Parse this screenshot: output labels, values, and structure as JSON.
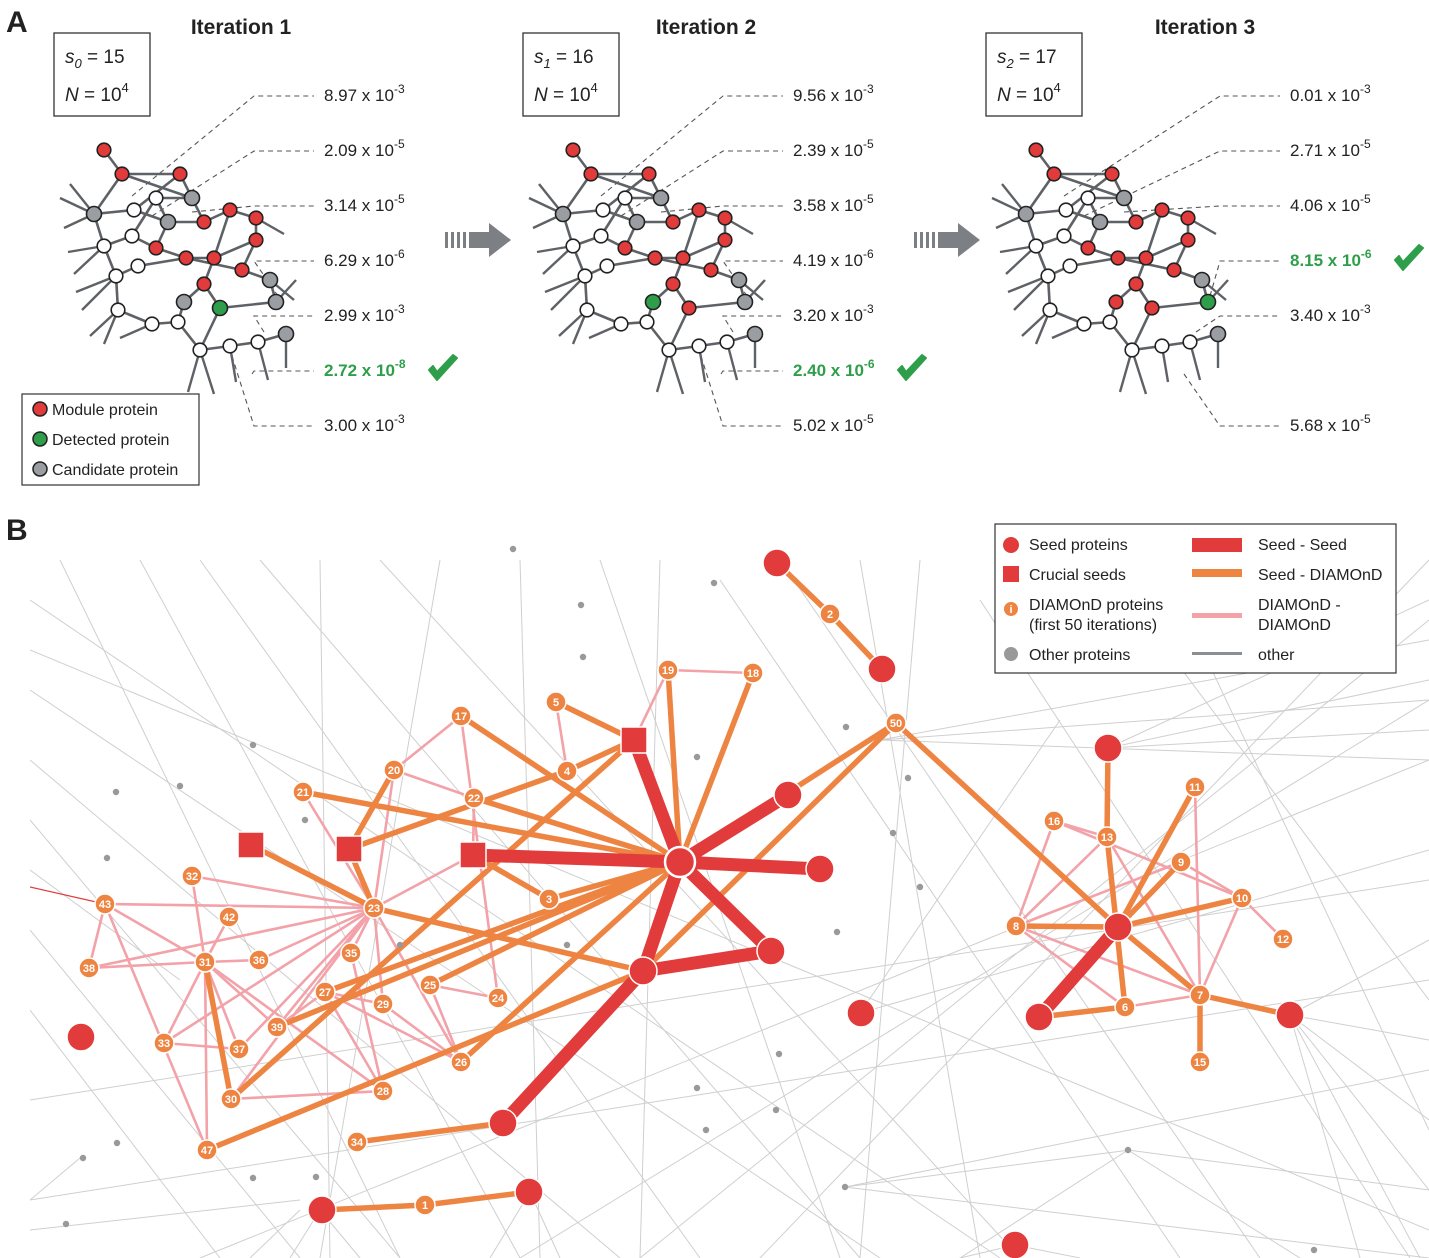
{
  "panel_a": {
    "letter": "A",
    "legend": {
      "module": "Module protein",
      "detected": "Detected protein",
      "candidate": "Candidate protein"
    },
    "arrow_icon": "double-right-arrow",
    "iterations": [
      {
        "title": "Iteration 1",
        "s_label": "s",
        "s_sub": "0",
        "s_value": " = 15",
        "n_label": "N",
        "n_value": " = 10",
        "n_exp": "4",
        "pvalues": [
          {
            "mant": "8.97 x 10",
            "exp": "-3",
            "hl": false
          },
          {
            "mant": "2.09 x 10",
            "exp": "-5",
            "hl": false
          },
          {
            "mant": "3.14 x 10",
            "exp": "-5",
            "hl": false
          },
          {
            "mant": "6.29 x 10",
            "exp": "-6",
            "hl": false
          },
          {
            "mant": "2.99 x 10",
            "exp": "-3",
            "hl": false
          },
          {
            "mant": "2.72 x 10",
            "exp": "-8",
            "hl": true
          },
          {
            "mant": "3.00 x 10",
            "exp": "-3",
            "hl": false
          }
        ]
      },
      {
        "title": "Iteration 2",
        "s_label": "s",
        "s_sub": "1",
        "s_value": " = 16",
        "n_label": "N",
        "n_value": " = 10",
        "n_exp": "4",
        "pvalues": [
          {
            "mant": "9.56 x 10",
            "exp": "-3",
            "hl": false
          },
          {
            "mant": "2.39 x 10",
            "exp": "-5",
            "hl": false
          },
          {
            "mant": "3.58 x 10",
            "exp": "-5",
            "hl": false
          },
          {
            "mant": "4.19 x 10",
            "exp": "-6",
            "hl": false
          },
          {
            "mant": "3.20 x 10",
            "exp": "-3",
            "hl": false
          },
          {
            "mant": "2.40 x 10",
            "exp": "-6",
            "hl": true
          },
          {
            "mant": "5.02 x 10",
            "exp": "-5",
            "hl": false
          }
        ]
      },
      {
        "title": "Iteration 3",
        "s_label": "s",
        "s_sub": "2",
        "s_value": " = 17",
        "n_label": "N",
        "n_value": " = 10",
        "n_exp": "4",
        "pvalues": [
          {
            "mant": "0.01 x 10",
            "exp": "-3",
            "hl": false
          },
          {
            "mant": "2.71 x 10",
            "exp": "-5",
            "hl": false
          },
          {
            "mant": "4.06 x 10",
            "exp": "-5",
            "hl": false
          },
          {
            "mant": "8.15 x 10",
            "exp": "-6",
            "hl": true
          },
          {
            "mant": "3.40 x 10",
            "exp": "-3",
            "hl": false
          },
          {
            "mant": "5.68 x 10",
            "exp": "-5",
            "hl": false
          }
        ]
      }
    ]
  },
  "panel_b": {
    "letter": "B",
    "legend": {
      "seed": "Seed proteins",
      "crucial": "Crucial seeds",
      "diamond_line1": "DIAMOnD proteins",
      "diamond_line2": "(first 50 iterations)",
      "diamond_icon_glyph": "i",
      "other": "Other proteins",
      "edge_seed_seed": "Seed - Seed",
      "edge_seed_diamond": "Seed - DIAMOnD",
      "edge_dd_line1": "DIAMOnD -",
      "edge_dd_line2": "DIAMOnD",
      "edge_other": "other"
    },
    "colors": {
      "seed": "#e23b3b",
      "diamond": "#ee8442",
      "dd_edge": "#f2a2a8",
      "other_node": "#999999",
      "other_edge": "#cfcfcf",
      "highlight_green": "#2e9e4a"
    },
    "diamond_labels": [
      "1",
      "2",
      "3",
      "4",
      "5",
      "6",
      "7",
      "8",
      "9",
      "10",
      "11",
      "12",
      "13",
      "15",
      "16",
      "17",
      "18",
      "19",
      "20",
      "21",
      "22",
      "23",
      "24",
      "25",
      "26",
      "27",
      "28",
      "29",
      "30",
      "31",
      "32",
      "33",
      "34",
      "35",
      "36",
      "37",
      "38",
      "39",
      "42",
      "43",
      "47",
      "50"
    ]
  }
}
